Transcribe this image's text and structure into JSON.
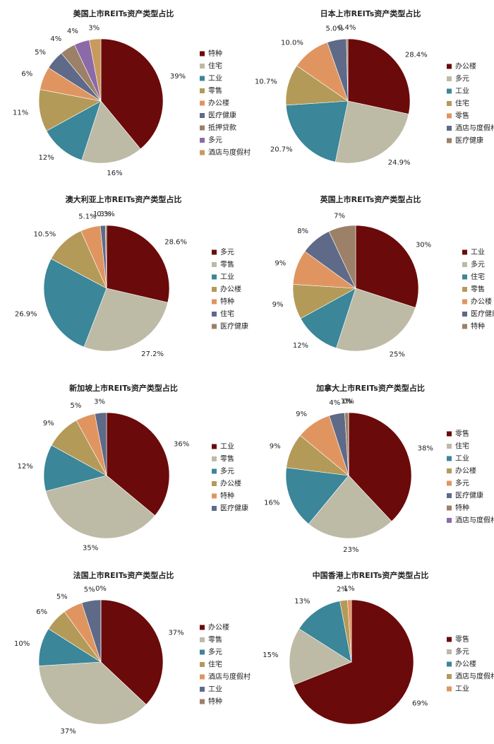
{
  "chart_data": [
    {
      "type": "pie",
      "title": "美国上市REITs资产类型占比",
      "categories": [
        "特种",
        "住宅",
        "工业",
        "零售",
        "办公楼",
        "医疗健康",
        "抵押贷款",
        "多元",
        "酒店与度假村"
      ],
      "values": [
        39,
        16,
        12,
        11,
        6,
        5,
        4,
        4,
        3
      ],
      "value_labels": [
        "39%",
        "16%",
        "12%",
        "11%",
        "6%",
        "5%",
        "4%",
        "4%",
        "3%"
      ],
      "colors": [
        "#6b0a0a",
        "#bdbaa6",
        "#3b8698",
        "#b49a58",
        "#e09560",
        "#5e6a87",
        "#9c8068",
        "#8c6aa8",
        "#c89a5c"
      ]
    },
    {
      "type": "pie",
      "title": "日本上市REITs资产类型占比",
      "categories": [
        "办公楼",
        "多元",
        "工业",
        "住宅",
        "零售",
        "酒店与度假村",
        "医疗健康"
      ],
      "values": [
        28.4,
        24.9,
        20.7,
        10.7,
        10.0,
        5.0,
        0.4
      ],
      "value_labels": [
        "28.4%",
        "24.9%",
        "20.7%",
        "10.7%",
        "10.0%",
        "5.0%",
        "0.4%"
      ],
      "colors": [
        "#6b0a0a",
        "#bdbaa6",
        "#3b8698",
        "#b49a58",
        "#e09560",
        "#5e6a87",
        "#9c8068"
      ]
    },
    {
      "type": "pie",
      "title": "澳大利亚上市REITs资产类型占比",
      "categories": [
        "多元",
        "零售",
        "工业",
        "办公楼",
        "特种",
        "住宅",
        "医疗健康"
      ],
      "values": [
        28.6,
        27.2,
        26.9,
        10.5,
        5.1,
        1.3,
        0.3
      ],
      "value_labels": [
        "28.6%",
        "27.2%",
        "26.9%",
        "10.5%",
        "5.1%",
        "1.3%",
        "0.3%"
      ],
      "colors": [
        "#6b0a0a",
        "#bdbaa6",
        "#3b8698",
        "#b49a58",
        "#e09560",
        "#5e6a87",
        "#9c8068"
      ]
    },
    {
      "type": "pie",
      "title": "英国上市REITs资产类型占比",
      "categories": [
        "工业",
        "多元",
        "住宅",
        "零售",
        "办公楼",
        "医疗健康",
        "特种"
      ],
      "values": [
        30,
        25,
        12,
        9,
        9,
        8,
        7
      ],
      "value_labels": [
        "30%",
        "25%",
        "12%",
        "9%",
        "9%",
        "8%",
        "7%"
      ],
      "colors": [
        "#6b0a0a",
        "#bdbaa6",
        "#3b8698",
        "#b49a58",
        "#e09560",
        "#5e6a87",
        "#9c8068"
      ]
    },
    {
      "type": "pie",
      "title": "新加坡上市REITs资产类型占比",
      "categories": [
        "工业",
        "零售",
        "多元",
        "办公楼",
        "特种",
        "医疗健康"
      ],
      "values": [
        36,
        35,
        12,
        9,
        5,
        3
      ],
      "value_labels": [
        "36%",
        "35%",
        "12%",
        "9%",
        "5%",
        "3%"
      ],
      "colors": [
        "#6b0a0a",
        "#bdbaa6",
        "#3b8698",
        "#b49a58",
        "#e09560",
        "#5e6a87"
      ]
    },
    {
      "type": "pie",
      "title": "加拿大上市REITs资产类型占比",
      "categories": [
        "零售",
        "住宅",
        "工业",
        "办公楼",
        "多元",
        "医疗健康",
        "特种",
        "酒店与度假村"
      ],
      "values": [
        38,
        23,
        16,
        9,
        9,
        4,
        1,
        0
      ],
      "value_labels": [
        "38%",
        "23%",
        "16%",
        "9%",
        "9%",
        "4%",
        "1%",
        "0%"
      ],
      "colors": [
        "#6b0a0a",
        "#bdbaa6",
        "#3b8698",
        "#b49a58",
        "#e09560",
        "#5e6a87",
        "#9c8068",
        "#8c6aa8"
      ]
    },
    {
      "type": "pie",
      "title": "法国上市REITs资产类型占比",
      "categories": [
        "办公楼",
        "零售",
        "多元",
        "住宅",
        "酒店与度假村",
        "工业",
        "特种"
      ],
      "values": [
        37,
        37,
        10,
        6,
        5,
        5,
        0
      ],
      "value_labels": [
        "37%",
        "37%",
        "10%",
        "6%",
        "5%",
        "5%",
        "0%"
      ],
      "colors": [
        "#6b0a0a",
        "#bdbaa6",
        "#3b8698",
        "#b49a58",
        "#e09560",
        "#5e6a87",
        "#9c8068"
      ]
    },
    {
      "type": "pie",
      "title": "中国香港上市REITs资产类型占比",
      "categories": [
        "零售",
        "多元",
        "办公楼",
        "酒店与度假村",
        "工业"
      ],
      "values": [
        69,
        15,
        13,
        2,
        1
      ],
      "value_labels": [
        "69%",
        "15%",
        "13%",
        "2%",
        "1%"
      ],
      "colors": [
        "#6b0a0a",
        "#bdbaa6",
        "#3b8698",
        "#b49a58",
        "#e09560"
      ]
    }
  ]
}
